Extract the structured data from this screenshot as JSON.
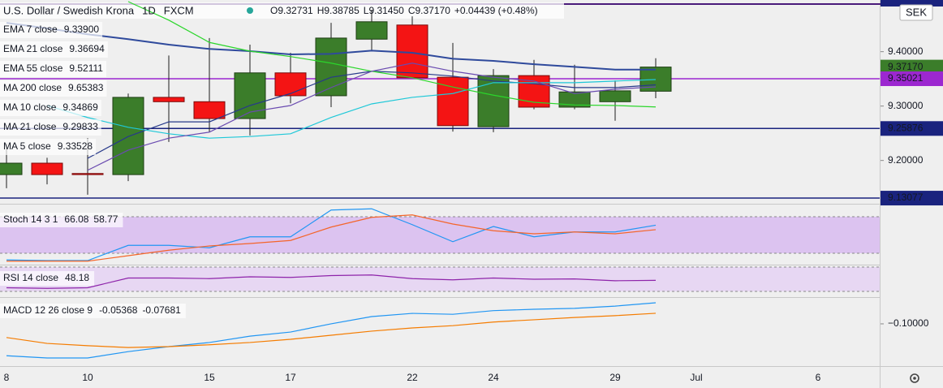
{
  "chart_data": [
    {
      "type": "candlestick",
      "title": "U.S. Dollar / Swedish Krona",
      "interval": "1D",
      "source": "FXCM",
      "currency": "SEK",
      "header_values": [
        "O9.32731",
        "H9.38785",
        "L9.31450",
        "C9.37170",
        "+0.04439 (+0.48%)"
      ],
      "categories": [
        "8",
        null,
        "10",
        null,
        null,
        "15",
        null,
        "17",
        null,
        null,
        "22",
        null,
        "24",
        null,
        null,
        "29",
        null,
        "Jul",
        null,
        null,
        "6"
      ],
      "open": [
        9.174,
        9.195,
        9.176,
        9.174,
        9.316,
        9.308,
        9.277,
        9.361,
        9.319,
        9.423,
        9.449,
        9.353,
        9.262,
        9.356,
        9.298,
        9.308,
        9.32731,
        null,
        null,
        null,
        null
      ],
      "high": [
        9.231,
        9.205,
        9.241,
        9.323,
        9.393,
        9.425,
        9.413,
        9.398,
        9.453,
        9.477,
        9.465,
        9.416,
        9.368,
        9.385,
        9.376,
        9.347,
        9.38785,
        null,
        null,
        null,
        null
      ],
      "low": [
        9.149,
        9.156,
        9.137,
        9.162,
        9.234,
        9.252,
        9.246,
        9.305,
        9.298,
        9.402,
        9.352,
        9.253,
        9.252,
        9.294,
        9.294,
        9.273,
        9.3145,
        null,
        null,
        null,
        null
      ],
      "close": [
        9.195,
        9.174,
        9.174,
        9.316,
        9.308,
        9.277,
        9.361,
        9.319,
        9.425,
        9.455,
        9.352,
        9.264,
        9.356,
        9.298,
        9.326,
        9.328,
        9.3717,
        null,
        null,
        null,
        null
      ],
      "up_color": "#3b7d2a",
      "down_color": "#f41414",
      "ylim": [
        9.1219,
        9.495
      ],
      "yticks": [
        {
          "value": 9.2,
          "label": "9.20000"
        },
        {
          "value": 9.3,
          "label": "9.30000"
        },
        {
          "value": 9.4,
          "label": "9.40000"
        }
      ],
      "series": [
        {
          "name": "EMA 7 close",
          "value_label": "9.33900",
          "color": "#27398a",
          "values": [
            null,
            null,
            9.204,
            9.244,
            9.271,
            9.271,
            9.301,
            9.323,
            9.353,
            9.364,
            9.361,
            9.355,
            9.346,
            9.341,
            9.334,
            9.334,
            9.339,
            null,
            null,
            null,
            null
          ]
        },
        {
          "name": "EMA 21 close",
          "value_label": "9.36694",
          "color": "#2f4a9c",
          "values": [
            9.453,
            9.443,
            9.432,
            9.423,
            9.413,
            9.405,
            9.401,
            9.395,
            9.396,
            9.402,
            9.398,
            9.387,
            9.383,
            9.377,
            9.372,
            9.367,
            9.36694,
            null,
            null,
            null,
            null
          ]
        },
        {
          "name": "EMA 55 close",
          "value_label": "9.52111",
          "color": "#f5a623"
        },
        {
          "name": "MA 200 close",
          "value_label": "9.65383",
          "color": "#e01010"
        },
        {
          "name": "MA 10 close",
          "value_label": "9.34869",
          "color": "#1ec8d8",
          "values": [
            null,
            9.301,
            9.279,
            9.261,
            9.249,
            9.241,
            9.244,
            9.249,
            9.279,
            9.304,
            9.316,
            9.323,
            9.343,
            9.343,
            9.343,
            9.346,
            9.34869,
            null,
            null,
            null,
            null
          ]
        },
        {
          "name": "MA 21 close",
          "value_label": "9.29833",
          "color": "#2bd62b",
          "values": [
            null,
            null,
            null,
            9.492,
            9.458,
            9.417,
            9.401,
            9.391,
            9.379,
            9.364,
            9.352,
            9.335,
            9.32,
            9.307,
            9.302,
            9.301,
            9.29833,
            null,
            null,
            null,
            null
          ]
        },
        {
          "name": "MA 5 close",
          "value_label": "9.33528",
          "color": "#6a4bb0",
          "values": [
            null,
            null,
            9.182,
            9.219,
            9.241,
            9.252,
            9.289,
            9.301,
            9.334,
            9.364,
            9.379,
            9.364,
            9.353,
            9.346,
            9.323,
            9.331,
            9.33528,
            null,
            null,
            null,
            null
          ]
        }
      ],
      "price_lines": [
        {
          "value": 9.3717,
          "label": "9.37170",
          "color": "#3b7d2a",
          "line": false
        },
        {
          "value": 9.35021,
          "label": "9.35021",
          "color": "#9c27d0",
          "line": true
        },
        {
          "value": 9.25876,
          "label": "9.25876",
          "color": "#1a237e",
          "line": true
        },
        {
          "value": 9.13077,
          "label": "9.13077",
          "color": "#1a237e",
          "line": true
        }
      ]
    },
    {
      "type": "line",
      "title": "Stoch 14 3 1",
      "ylim": [
        2.67,
        96
      ],
      "band": [
        20,
        80
      ],
      "band_color": "#dcc3f0",
      "series": [
        {
          "color": "#2196f3",
          "values": [
            9,
            8,
            8,
            33,
            33,
            29,
            47,
            47,
            91,
            93,
            67,
            39,
            64,
            47,
            55,
            55,
            66.08,
            null,
            null,
            null,
            null
          ]
        },
        {
          "color": "#f4652a",
          "values": [
            7,
            7,
            7,
            16,
            25,
            32,
            36,
            41,
            63,
            79,
            83,
            68,
            57,
            52,
            55,
            52,
            58.77,
            null,
            null,
            null,
            null
          ]
        }
      ]
    },
    {
      "type": "line",
      "title": "RSI 14 close",
      "ylim": [
        22,
        72.67
      ],
      "band": [
        30,
        70
      ],
      "band_color": "#e7d7f3",
      "series": [
        {
          "color": "#8e24aa",
          "values": [
            36,
            35,
            36,
            52,
            52,
            51,
            54,
            53,
            56,
            57,
            51,
            49,
            52,
            50,
            50.5,
            47.5,
            48.18,
            null,
            null,
            null,
            null
          ]
        }
      ]
    },
    {
      "type": "line",
      "title": "MACD 12 26 close 9",
      "ylim": [
        -0.191,
        -0.043
      ],
      "yticks": [
        {
          "value": -0.1,
          "label": "−0.10000"
        }
      ],
      "series": [
        {
          "color": "#2196f3",
          "values": [
            -0.17,
            -0.175,
            -0.175,
            -0.161,
            -0.15,
            -0.141,
            -0.127,
            -0.118,
            -0.1,
            -0.084,
            -0.077,
            -0.079,
            -0.071,
            -0.068,
            -0.066,
            -0.061,
            -0.05368,
            null,
            null,
            null,
            null
          ]
        },
        {
          "color": "#f57c00",
          "values": [
            -0.13,
            -0.143,
            -0.148,
            -0.152,
            -0.15,
            -0.146,
            -0.141,
            -0.134,
            -0.125,
            -0.116,
            -0.109,
            -0.104,
            -0.096,
            -0.091,
            -0.086,
            -0.082,
            -0.07681,
            null,
            null,
            null,
            null
          ]
        }
      ]
    }
  ]
}
